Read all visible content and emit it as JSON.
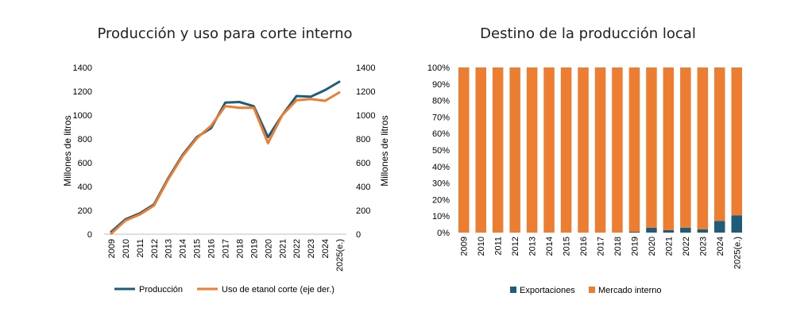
{
  "chart_data": [
    {
      "type": "line",
      "title": "Producción y uso para corte interno",
      "ylabel": "Millones de litros",
      "ylabel_right": "Millones de litros",
      "ylim": [
        0,
        1400
      ],
      "yticks": [
        "0",
        "200",
        "400",
        "600",
        "800",
        "1000",
        "1200",
        "1400"
      ],
      "categories": [
        "2009",
        "2010",
        "2011",
        "2012",
        "2013",
        "2014",
        "2015",
        "2016",
        "2017",
        "2018",
        "2019",
        "2020",
        "2021",
        "2022",
        "2023",
        "2024",
        "2025(e.)"
      ],
      "legend_position": "bottom",
      "series": [
        {
          "name": "Producción",
          "color": "#1f5c7a",
          "axis": "left",
          "values": [
            20,
            125,
            175,
            250,
            470,
            665,
            815,
            890,
            1105,
            1110,
            1075,
            815,
            1000,
            1160,
            1155,
            1210,
            1280
          ]
        },
        {
          "name": "Uso de etanol corte (eje der.)",
          "color": "#ed7d31",
          "axis": "right",
          "values": [
            5,
            115,
            165,
            240,
            460,
            655,
            805,
            910,
            1075,
            1062,
            1062,
            765,
            1000,
            1125,
            1135,
            1120,
            1190
          ]
        }
      ]
    },
    {
      "type": "bar",
      "stacked": true,
      "percent": true,
      "title": "Destino de la producción local",
      "ylim": [
        0,
        100
      ],
      "yticks": [
        "0%",
        "10%",
        "20%",
        "30%",
        "40%",
        "50%",
        "60%",
        "70%",
        "80%",
        "90%",
        "100%"
      ],
      "categories": [
        "2009",
        "2010",
        "2011",
        "2012",
        "2013",
        "2014",
        "2015",
        "2016",
        "2017",
        "2018",
        "2019",
        "2020",
        "2021",
        "2022",
        "2023",
        "2024",
        "2025(e.)"
      ],
      "legend_position": "bottom",
      "series": [
        {
          "name": "Exportaciones",
          "color": "#1f5c7a",
          "values": [
            0,
            0,
            0,
            0,
            0,
            0,
            0,
            0,
            0,
            0,
            0.5,
            3,
            1.5,
            3,
            2,
            7,
            10.5
          ]
        },
        {
          "name": "Mercado interno",
          "color": "#ed7d31",
          "values": [
            100,
            100,
            100,
            100,
            100,
            100,
            100,
            100,
            100,
            100,
            99.5,
            97,
            98.5,
            97,
            98,
            93,
            89.5
          ]
        }
      ]
    }
  ]
}
